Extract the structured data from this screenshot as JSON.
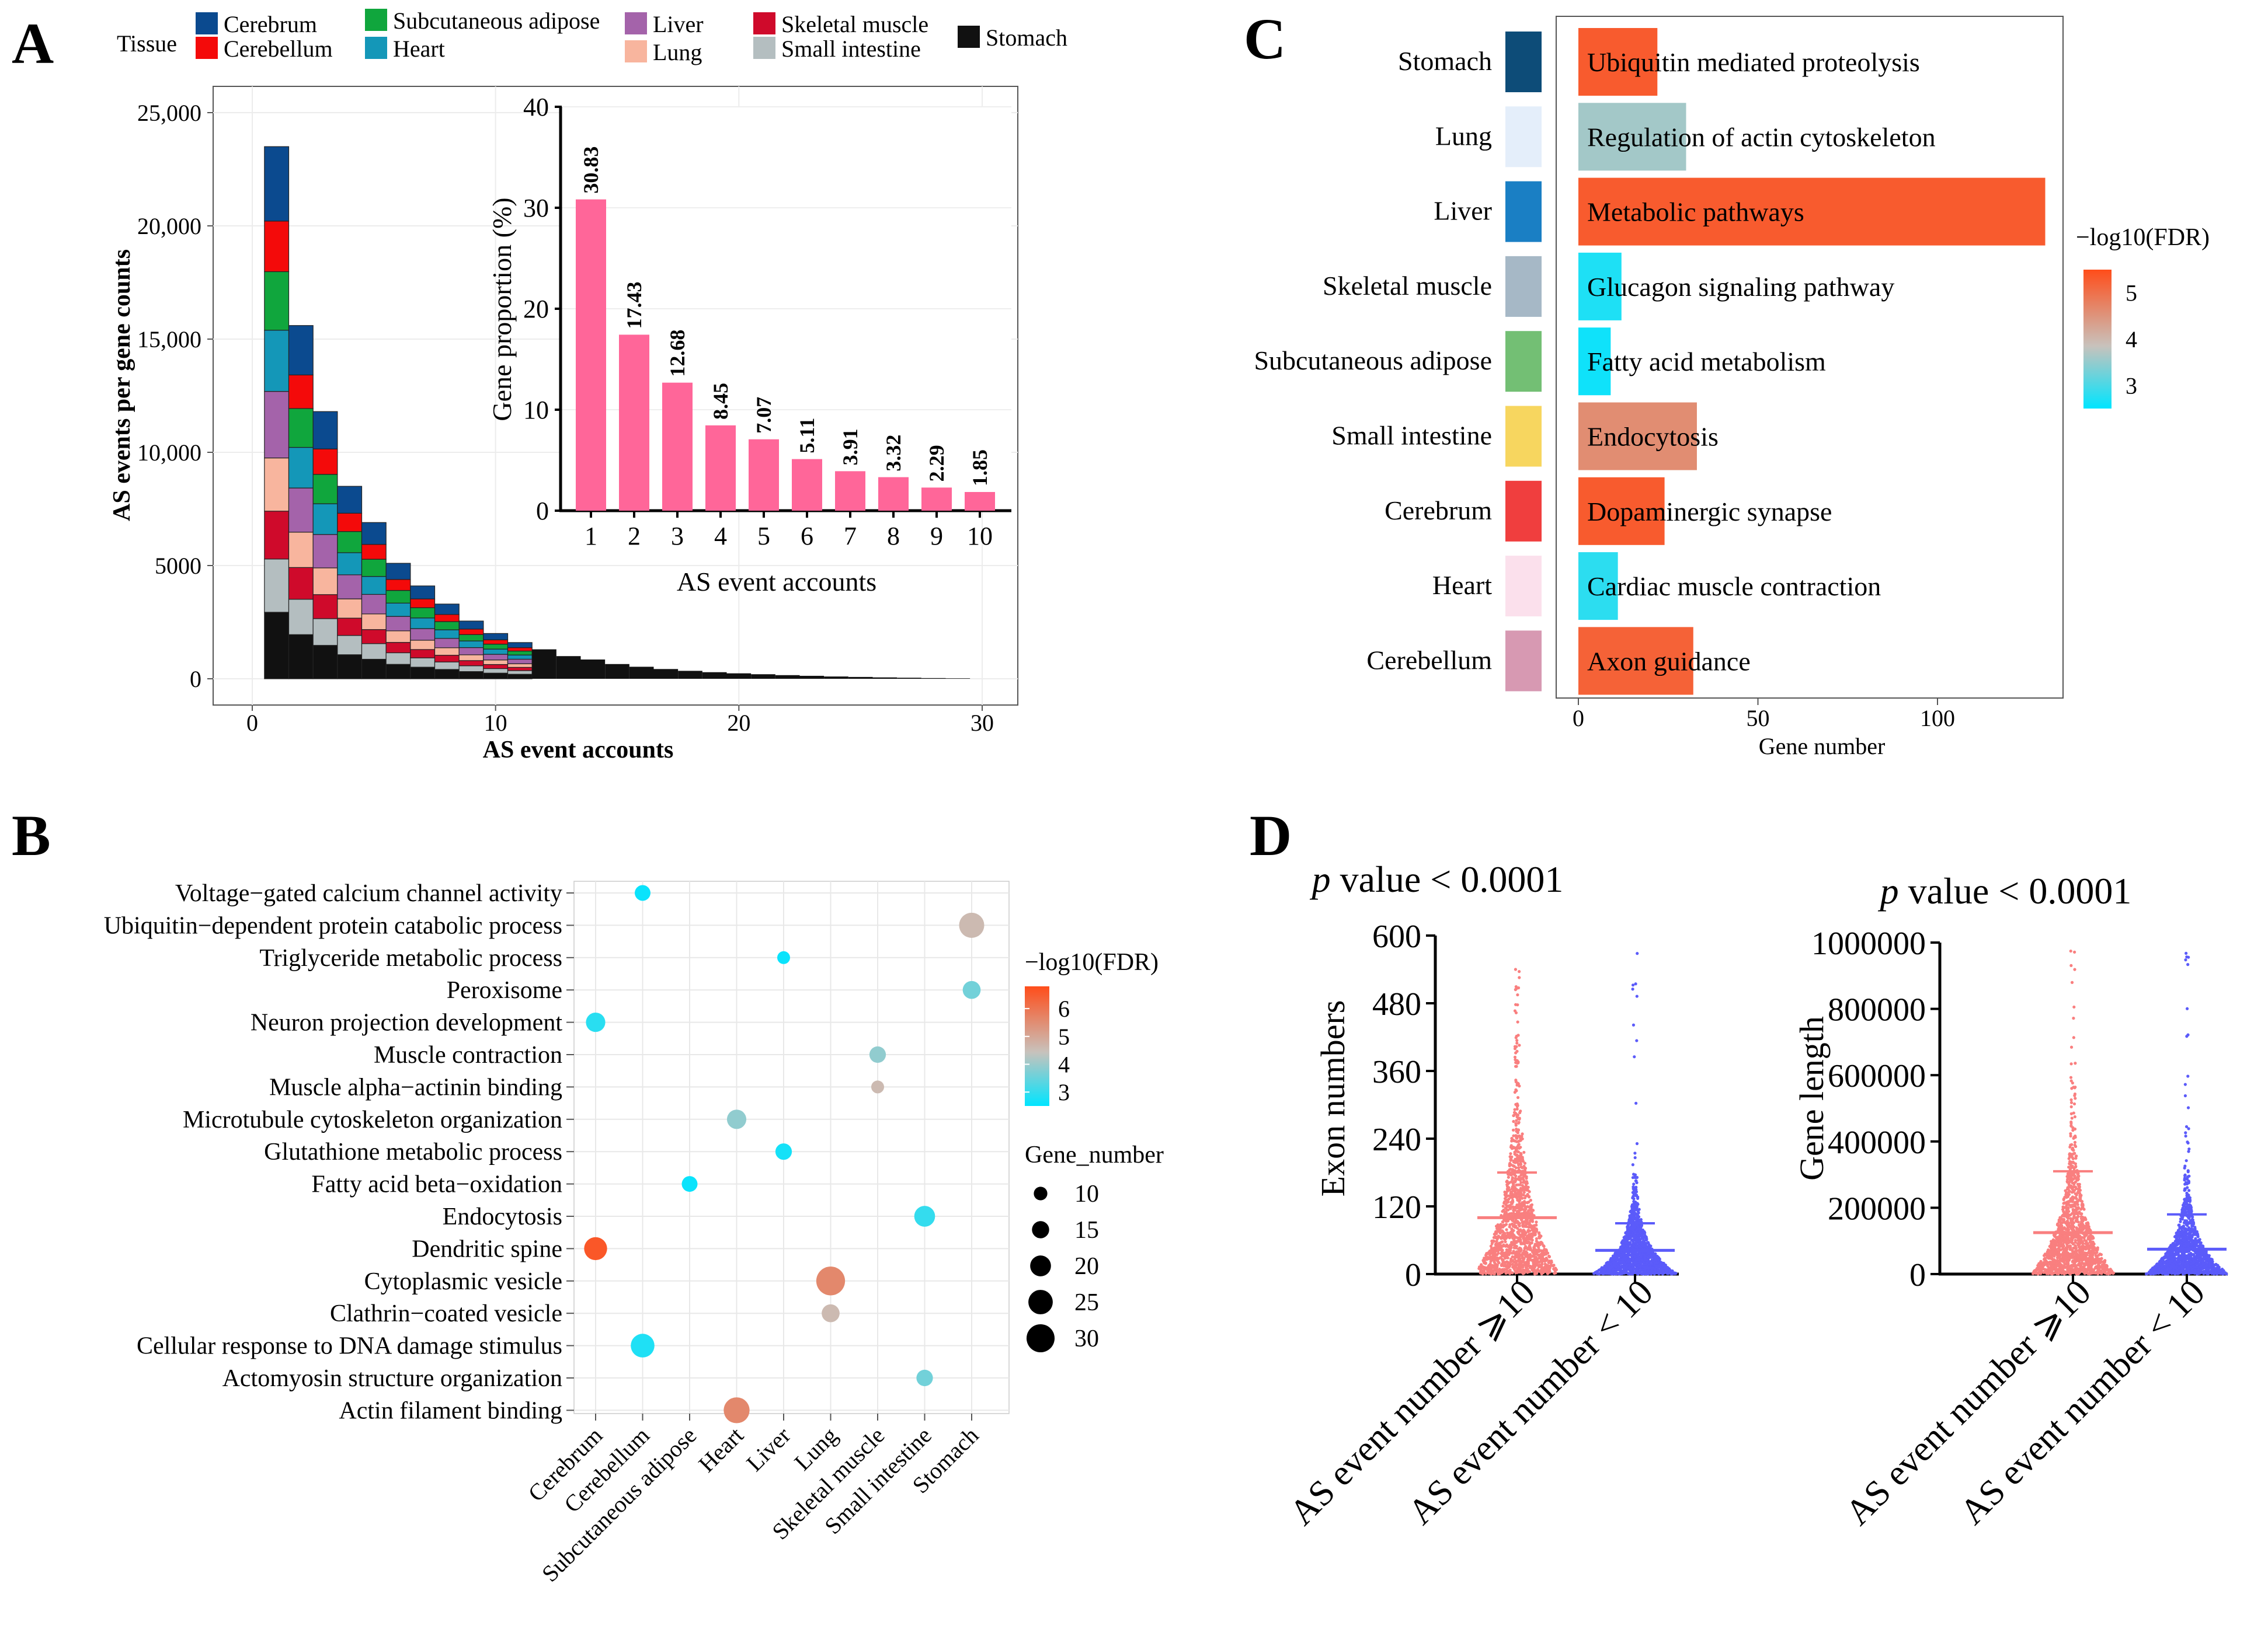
{
  "figure_title": "",
  "panel_labels": [
    "A",
    "B",
    "C",
    "D"
  ],
  "chart_data": [
    {
      "panel": "A",
      "type": "bar",
      "stacked": true,
      "xlabel": "AS event accounts",
      "ylabel": "AS events per gene counts",
      "xlim": [
        0,
        30
      ],
      "ylim": [
        0,
        25000
      ],
      "x_ticks": [
        "0",
        "10",
        "20",
        "30"
      ],
      "y_ticks": [
        "0",
        "5000",
        "10,000",
        "15,000",
        "20,000",
        "25,000"
      ],
      "legend_title": "Tissue",
      "legend": [
        {
          "name": "Cerebrum",
          "color": "#0b4a8f"
        },
        {
          "name": "Cerebellum",
          "color": "#f40a0a"
        },
        {
          "name": "Subcutaneous adipose",
          "color": "#10a63d"
        },
        {
          "name": "Heart",
          "color": "#1497b8"
        },
        {
          "name": "Liver",
          "color": "#a463aa"
        },
        {
          "name": "Lung",
          "color": "#f8b59e"
        },
        {
          "name": "Skeletal muscle",
          "color": "#cf0a2b"
        },
        {
          "name": "Small intestine",
          "color": "#b4bec0"
        },
        {
          "name": "Stomach",
          "color": "#111111"
        }
      ],
      "stack_order": [
        "Stomach",
        "Small intestine",
        "Skeletal muscle",
        "Lung",
        "Liver",
        "Heart",
        "Subcutaneous adipose",
        "Cerebellum",
        "Cerebrum"
      ],
      "x": [
        1,
        2,
        3,
        4,
        5,
        6,
        7,
        8,
        9,
        10,
        11,
        12,
        13,
        14,
        15,
        16,
        17,
        18,
        19,
        20,
        21,
        22,
        23,
        24,
        25,
        26,
        27,
        28,
        29
      ],
      "totals": [
        23500,
        15600,
        11800,
        8500,
        6900,
        5100,
        4100,
        3300,
        2550,
        2000,
        1600,
        1300,
        1000,
        850,
        650,
        530,
        430,
        350,
        290,
        240,
        200,
        160,
        130,
        100,
        80,
        60,
        45,
        30,
        20
      ],
      "inset": {
        "type": "bar",
        "xlabel": "AS event accounts",
        "ylabel": "Gene proportion (%)",
        "categories": [
          "1",
          "2",
          "3",
          "4",
          "5",
          "6",
          "7",
          "8",
          "9",
          "10"
        ],
        "values": [
          30.83,
          17.43,
          12.68,
          8.45,
          7.07,
          5.11,
          3.91,
          3.32,
          2.29,
          1.85
        ],
        "value_labels": [
          "30.83",
          "17.43",
          "12.68",
          "8.45",
          "7.07",
          "5.11",
          "3.91",
          "3.32",
          "2.29",
          "1.85"
        ],
        "ylim": [
          0,
          40
        ],
        "y_ticks": [
          "0",
          "10",
          "20",
          "30",
          "40"
        ],
        "color": "#ff6699"
      }
    },
    {
      "panel": "B",
      "type": "scatter",
      "subtype": "bubble",
      "x_categories": [
        "Cerebrum",
        "Cerebellum",
        "Subcutaneous adipose",
        "Heart",
        "Liver",
        "Lung",
        "Skeletal muscle",
        "Small intestine",
        "Stomach"
      ],
      "y_categories": [
        "Voltage−gated calcium channel activity",
        "Ubiquitin−dependent protein catabolic process",
        "Triglyceride metabolic process",
        "Peroxisome",
        "Neuron projection development",
        "Muscle contraction",
        "Muscle alpha−actinin binding",
        "Microtubule cytoskeleton organization",
        "Glutathione metabolic process",
        "Fatty acid beta−oxidation",
        "Endocytosis",
        "Dendritic spine",
        "Cytoplasmic vesicle",
        "Clathrin−coated vesicle",
        "Cellular response to DNA damage stimulus",
        "Actomyosin structure organization",
        "Actin filament binding"
      ],
      "points": [
        {
          "x": "Cerebellum",
          "y": "Voltage−gated calcium channel activity",
          "gene_number": 13,
          "neg_log10_fdr": 2.6
        },
        {
          "x": "Stomach",
          "y": "Ubiquitin−dependent protein catabolic process",
          "gene_number": 26,
          "neg_log10_fdr": 4.6
        },
        {
          "x": "Liver",
          "y": "Triglyceride metabolic process",
          "gene_number": 9,
          "neg_log10_fdr": 2.6
        },
        {
          "x": "Stomach",
          "y": "Peroxisome",
          "gene_number": 16,
          "neg_log10_fdr": 3.6
        },
        {
          "x": "Cerebrum",
          "y": "Neuron projection development",
          "gene_number": 18,
          "neg_log10_fdr": 2.9
        },
        {
          "x": "Skeletal muscle",
          "y": "Muscle contraction",
          "gene_number": 14,
          "neg_log10_fdr": 3.9
        },
        {
          "x": "Skeletal muscle",
          "y": "Muscle alpha−actinin binding",
          "gene_number": 9,
          "neg_log10_fdr": 4.6
        },
        {
          "x": "Heart",
          "y": "Microtubule cytoskeleton organization",
          "gene_number": 18,
          "neg_log10_fdr": 3.9
        },
        {
          "x": "Liver",
          "y": "Glutathione metabolic process",
          "gene_number": 14,
          "neg_log10_fdr": 2.7
        },
        {
          "x": "Subcutaneous adipose",
          "y": "Fatty acid beta−oxidation",
          "gene_number": 13,
          "neg_log10_fdr": 2.6
        },
        {
          "x": "Small intestine",
          "y": "Endocytosis",
          "gene_number": 20,
          "neg_log10_fdr": 3.0
        },
        {
          "x": "Cerebrum",
          "y": "Dendritic spine",
          "gene_number": 23,
          "neg_log10_fdr": 6.6
        },
        {
          "x": "Lung",
          "y": "Cytoplasmic vesicle",
          "gene_number": 31,
          "neg_log10_fdr": 5.6
        },
        {
          "x": "Lung",
          "y": "Clathrin−coated vesicle",
          "gene_number": 16,
          "neg_log10_fdr": 4.6
        },
        {
          "x": "Cerebellum",
          "y": "Cellular response to DNA damage stimulus",
          "gene_number": 24,
          "neg_log10_fdr": 2.8
        },
        {
          "x": "Small intestine",
          "y": "Actomyosin structure organization",
          "gene_number": 14,
          "neg_log10_fdr": 3.6
        },
        {
          "x": "Heart",
          "y": "Actin filament binding",
          "gene_number": 27,
          "neg_log10_fdr": 5.6
        }
      ],
      "color_legend_title": "−log10(FDR)",
      "color_ticks": [
        "3",
        "4",
        "5",
        "6"
      ],
      "size_legend_title": "Gene_number",
      "size_legend": [
        "10",
        "15",
        "20",
        "25",
        "30"
      ]
    },
    {
      "panel": "C",
      "type": "bar",
      "orientation": "horizontal",
      "xlabel": "Gene  number",
      "xlim": [
        0,
        135
      ],
      "x_ticks": [
        "0",
        "50",
        "100"
      ],
      "tissues": [
        "Stomach",
        "Lung",
        "Liver",
        "Skeletal muscle",
        "Subcutaneous adipose",
        "Small intestine",
        "Cerebrum",
        "Heart",
        "Cerebellum"
      ],
      "tissue_colors": [
        "#0d4c78",
        "#e4eefa",
        "#1a7fc4",
        "#a6b8c6",
        "#73bf74",
        "#f7d65f",
        "#f03e3e",
        "#fbe0ec",
        "#d799b2"
      ],
      "categories": [
        "Ubiquitin mediated proteolysis",
        "Regulation of actin cytoskeleton",
        "Metabolic pathways",
        "Glucagon signaling pathway",
        "Fatty acid metabolism",
        "Endocytosis",
        "Dopaminergic synapse",
        "Cardiac muscle contraction",
        "Axon guidance"
      ],
      "values": [
        22,
        30,
        130,
        12,
        9,
        33,
        24,
        11,
        32
      ],
      "neg_log10_fdr": [
        5.3,
        3.6,
        5.3,
        2.7,
        2.6,
        4.6,
        5.3,
        2.8,
        5.2
      ],
      "color_legend_title": "−log10(FDR)",
      "color_ticks": [
        "3",
        "4",
        "5"
      ]
    },
    {
      "panel": "D",
      "type": "scatter",
      "subtype": "dot-strip",
      "plots": [
        {
          "title_italic": "p",
          "title_rest": " value < 0.0001",
          "ylabel": "Exon numbers",
          "ylim": [
            0,
            600
          ],
          "y_ticks": [
            "0",
            "120",
            "240",
            "360",
            "480",
            "600"
          ],
          "groups": [
            "AS event number ⩾10",
            "AS event number < 10"
          ],
          "group_colors": [
            "#f97f7f",
            "#5b5bfa"
          ],
          "means": [
            100,
            42
          ],
          "upper_sd": [
            180,
            90
          ],
          "max": [
            540,
            590
          ]
        },
        {
          "title_italic": "p",
          "title_rest": " value < 0.0001",
          "ylabel": "Gene length",
          "ylim": [
            0,
            1000000
          ],
          "y_ticks": [
            "0",
            "200000",
            "400000",
            "600000",
            "800000",
            "1000000"
          ],
          "groups": [
            "AS event number ⩾10",
            "AS event number < 10"
          ],
          "group_colors": [
            "#f97f7f",
            "#5b5bfa"
          ],
          "means": [
            125000,
            75000
          ],
          "upper_sd": [
            310000,
            180000
          ],
          "max": [
            1000000,
            980000
          ]
        }
      ]
    }
  ]
}
